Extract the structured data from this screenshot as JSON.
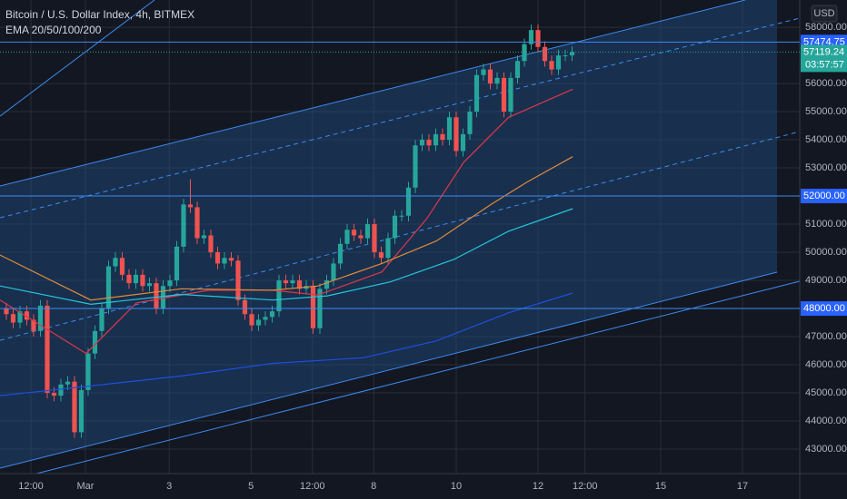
{
  "chart_data": {
    "type": "candlestick",
    "title": "Bitcoin / U.S. Dollar Index, 4h, BITMEX",
    "indicator": "EMA 20/50/100/200",
    "currency": "USD",
    "x": [
      0,
      1,
      2,
      3,
      4,
      5,
      6,
      7,
      8,
      9,
      10,
      11,
      12,
      13,
      14,
      15,
      16,
      17,
      18,
      19,
      20,
      21,
      22,
      23,
      24,
      25,
      26,
      27,
      28,
      29,
      30,
      31,
      32,
      33,
      34,
      35,
      36,
      37,
      38,
      39,
      40,
      41,
      42,
      43,
      44,
      45,
      46,
      47,
      48,
      49,
      50,
      51,
      52,
      53,
      54,
      55,
      56,
      57,
      58,
      59,
      60,
      61,
      62,
      63,
      64,
      65,
      66,
      67,
      68,
      69,
      70,
      71,
      72,
      73,
      74,
      75,
      76,
      77,
      78,
      79,
      80,
      81,
      82,
      83
    ],
    "open": [
      48000,
      47800,
      47500,
      47900,
      47600,
      47200,
      48100,
      45000,
      44900,
      45300,
      45400,
      43600,
      45100,
      46400,
      47200,
      48000,
      49500,
      49800,
      49200,
      48900,
      49200,
      48800,
      48900,
      48000,
      48800,
      49000,
      50200,
      51700,
      51600,
      50500,
      50600,
      50000,
      49600,
      49800,
      49700,
      48300,
      47800,
      47400,
      47600,
      47700,
      47900,
      49000,
      48900,
      49000,
      48700,
      48800,
      47300,
      48700,
      49000,
      49600,
      50300,
      50800,
      50600,
      50500,
      51000,
      50000,
      49800,
      50500,
      51300,
      51300,
      52300,
      53800,
      54000,
      53800,
      54200,
      54000,
      54800,
      53600,
      54200,
      55000,
      56300,
      56500,
      56000,
      56200,
      55000,
      56200,
      56800,
      57400,
      57900,
      57300,
      56800,
      56500,
      57000,
      57000
    ],
    "high": [
      48200,
      48000,
      48100,
      48100,
      47800,
      48300,
      48300,
      45200,
      45500,
      45600,
      45600,
      45300,
      46600,
      47400,
      48200,
      49700,
      50000,
      50000,
      49400,
      49400,
      49400,
      49100,
      49100,
      49000,
      49200,
      50400,
      51900,
      52600,
      51800,
      50800,
      50800,
      50200,
      50000,
      50000,
      49900,
      48500,
      48000,
      47800,
      47900,
      48100,
      49200,
      49200,
      49200,
      49200,
      49000,
      49000,
      48900,
      49200,
      49800,
      50500,
      51000,
      51000,
      50800,
      51200,
      51200,
      50200,
      50700,
      51500,
      51500,
      52500,
      54000,
      54200,
      54200,
      54400,
      54400,
      55000,
      55000,
      54400,
      55200,
      56500,
      56700,
      56700,
      56400,
      56400,
      56400,
      57000,
      57600,
      58100,
      58100,
      57500,
      57000,
      57200,
      57200,
      57319
    ],
    "low": [
      47600,
      47300,
      47300,
      47400,
      47000,
      47000,
      44800,
      44700,
      44700,
      45100,
      43400,
      43400,
      44900,
      46200,
      47000,
      47800,
      49300,
      49000,
      48700,
      48700,
      48600,
      48600,
      47800,
      47800,
      48600,
      48800,
      50000,
      51400,
      50300,
      50300,
      49800,
      49400,
      49400,
      49500,
      48100,
      47600,
      47200,
      47200,
      47400,
      47500,
      47700,
      48700,
      48700,
      48500,
      48500,
      47100,
      47100,
      48500,
      48800,
      49400,
      50100,
      50400,
      50300,
      50300,
      49800,
      49600,
      49600,
      50300,
      51100,
      51100,
      52100,
      53600,
      53600,
      53600,
      53800,
      53800,
      53400,
      53400,
      54000,
      54800,
      56100,
      55800,
      55800,
      54800,
      54800,
      56000,
      56600,
      57200,
      57100,
      56600,
      56300,
      56300,
      56800,
      56800
    ],
    "close": [
      47800,
      47500,
      47900,
      47600,
      47200,
      48100,
      45000,
      44900,
      45300,
      45400,
      43600,
      45100,
      46400,
      47200,
      48000,
      49500,
      49800,
      49200,
      48900,
      49200,
      48800,
      48900,
      48000,
      48800,
      49000,
      50200,
      51700,
      51600,
      50500,
      50600,
      50000,
      49600,
      49800,
      49700,
      48300,
      47800,
      47400,
      47600,
      47700,
      47900,
      49000,
      48900,
      49000,
      48700,
      48800,
      47300,
      48700,
      49000,
      49600,
      50300,
      50800,
      50600,
      50500,
      51000,
      50000,
      49800,
      50500,
      51300,
      51300,
      52300,
      53800,
      54000,
      53800,
      54200,
      54000,
      54800,
      53600,
      54200,
      55000,
      56300,
      56500,
      56000,
      56200,
      55000,
      56200,
      56800,
      57400,
      57900,
      57300,
      56800,
      56500,
      57000,
      57000,
      57119
    ],
    "up_color": "#26a69a",
    "down_color": "#ef5350",
    "ema": [
      {
        "color": "#e0364a",
        "x": [
          -0.93,
          11.7,
          19.1,
          29.7,
          39.1,
          45.7,
          55.1,
          61.7,
          67.1,
          73.7,
          83.1
        ],
        "values": [
          48300,
          46400,
          48200,
          48650,
          48650,
          48480,
          49300,
          51200,
          53200,
          54800,
          55800
        ]
      },
      {
        "color": "#e08a3a",
        "x": [
          -0.93,
          12.4,
          25.7,
          39.1,
          45.7,
          55.1,
          63.1,
          71.1,
          76.4,
          83.1
        ],
        "values": [
          49900,
          48300,
          48700,
          48650,
          48800,
          49600,
          50400,
          51700,
          52500,
          53400
        ]
      },
      {
        "color": "#26c6da",
        "x": [
          -0.93,
          12.4,
          25.7,
          39.1,
          47.1,
          56.4,
          65.7,
          73.7,
          83.1
        ],
        "values": [
          48800,
          48150,
          48500,
          48300,
          48450,
          48950,
          49750,
          50750,
          51550
        ]
      },
      {
        "color": "#1e4fe0",
        "x": [
          -0.93,
          12.4,
          25.7,
          39.1,
          52.4,
          63.1,
          73.7,
          83.1
        ],
        "values": [
          44900,
          45250,
          45600,
          46050,
          46250,
          46850,
          47850,
          48550
        ]
      }
    ],
    "levels": [
      57474.75,
      {
        "value": 52000,
        "label": "52000.00"
      },
      {
        "value": 48000,
        "label": "48000.00"
      }
    ],
    "last_price": 57119.24,
    "countdown": "03:57:57",
    "xlim": [
      -0.93,
      116.4
    ],
    "ylim": [
      42130,
      58970
    ],
    "xticks": [
      {
        "value": 3.6,
        "label": "12:00"
      },
      {
        "value": 11.6,
        "label": "Mar"
      },
      {
        "value": 23.9,
        "label": "3"
      },
      {
        "value": 35.9,
        "label": "5"
      },
      {
        "value": 44.9,
        "label": "12:00"
      },
      {
        "value": 53.9,
        "label": "8"
      },
      {
        "value": 66,
        "label": "10"
      },
      {
        "value": 78,
        "label": "12"
      },
      {
        "value": 84.9,
        "label": "12:00"
      },
      {
        "value": 96,
        "label": "15"
      },
      {
        "value": 108,
        "label": "17"
      }
    ],
    "yticks": [
      {
        "value": 58000,
        "label": "58000.00"
      },
      {
        "value": 56000,
        "label": "56000.00"
      },
      {
        "value": 55000,
        "label": "55000.00"
      },
      {
        "value": 54000,
        "label": "54000.00"
      },
      {
        "value": 53000,
        "label": "53000.00"
      },
      {
        "value": 51000,
        "label": "51000.00"
      },
      {
        "value": 50000,
        "label": "50000.00"
      },
      {
        "value": 49000,
        "label": "49000.00"
      },
      {
        "value": 47000,
        "label": "47000.00"
      },
      {
        "value": 46000,
        "label": "46000.00"
      },
      {
        "value": 45000,
        "label": "45000.00"
      },
      {
        "value": 44000,
        "label": "44000.00"
      },
      {
        "value": 43000,
        "label": "43000.00"
      }
    ],
    "grid": true
  }
}
